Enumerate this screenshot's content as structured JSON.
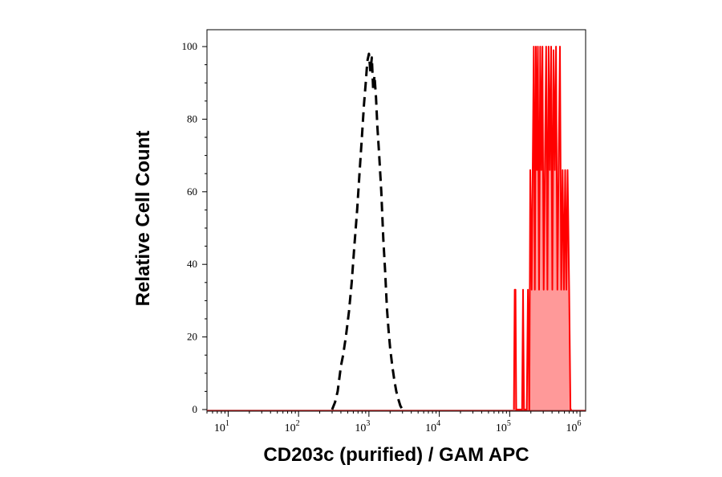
{
  "chart_data": {
    "type": "area",
    "title": "",
    "xlabel": "CD203c (purified) / GAM APC",
    "ylabel": "Relative Cell Count",
    "x_scale": "log",
    "xlim": [
      5,
      1200000
    ],
    "ylim": [
      0,
      103
    ],
    "x_ticks": [
      {
        "value": 10,
        "base": "10",
        "exp": "1"
      },
      {
        "value": 100,
        "base": "10",
        "exp": "2"
      },
      {
        "value": 1000,
        "base": "10",
        "exp": "3"
      },
      {
        "value": 10000,
        "base": "10",
        "exp": "4"
      },
      {
        "value": 100000,
        "base": "10",
        "exp": "5"
      },
      {
        "value": 1000000,
        "base": "10",
        "exp": "6"
      }
    ],
    "y_ticks": [
      0,
      20,
      40,
      60,
      80,
      100
    ],
    "grid": false,
    "legend": "none",
    "series": [
      {
        "style": "dashed",
        "color": "#000000",
        "fill": false,
        "x": [
          300,
          330,
          360,
          400,
          430,
          470,
          520,
          570,
          620,
          680,
          740,
          800,
          850,
          900,
          950,
          1000,
          1050,
          1100,
          1150,
          1200,
          1260,
          1320,
          1400,
          1500,
          1600,
          1700,
          1800,
          1900,
          2000,
          2150,
          2300,
          2450,
          2600,
          2800,
          3000,
          3200
        ],
        "y": [
          0,
          2,
          5,
          12,
          15,
          20,
          27,
          35,
          45,
          55,
          66,
          76,
          84,
          90,
          96,
          98,
          93,
          97,
          88,
          92,
          86,
          78,
          70,
          60,
          47,
          38,
          28,
          22,
          17,
          12,
          8,
          5,
          3,
          1,
          0,
          0
        ]
      },
      {
        "style": "solid",
        "color": "#ff0000",
        "fill": true,
        "fill_color": "#ff9999",
        "x": [
          115000,
          118000,
          121000,
          124000,
          150000,
          155000,
          160000,
          175000,
          182000,
          190000,
          196000,
          205000,
          212000,
          220000,
          228000,
          236000,
          244000,
          252000,
          262000,
          272000,
          282000,
          292000,
          304000,
          316000,
          330000,
          344000,
          358000,
          372000,
          388000,
          404000,
          420000,
          438000,
          456000,
          476000,
          496000,
          518000,
          540000,
          565000,
          590000,
          615000,
          640000,
          665000,
          700000,
          730000,
          760000
        ],
        "y": [
          0,
          33,
          33,
          0,
          0,
          33,
          0,
          0,
          33,
          0,
          66,
          33,
          66,
          100,
          33,
          100,
          66,
          100,
          33,
          100,
          66,
          100,
          33,
          66,
          100,
          33,
          100,
          66,
          100,
          33,
          99,
          66,
          100,
          33,
          66,
          100,
          33,
          66,
          33,
          66,
          33,
          66,
          33,
          0,
          0
        ]
      }
    ]
  }
}
